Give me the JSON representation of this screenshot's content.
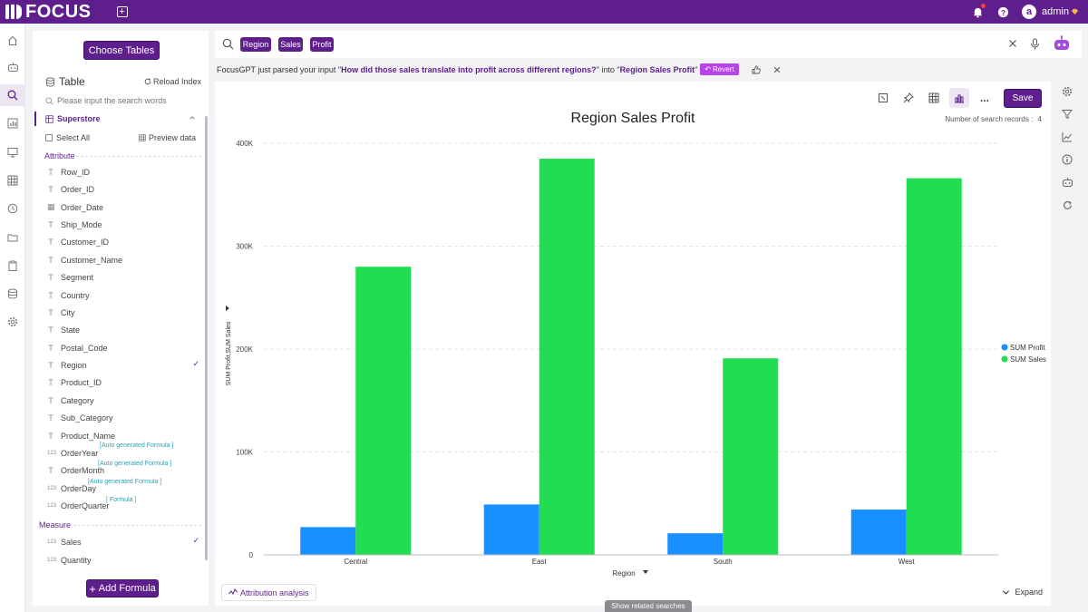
{
  "app": {
    "logo_text": "FOCUS",
    "user": {
      "avatar_letter": "a",
      "name": "admin"
    }
  },
  "panel": {
    "choose_tables_label": "Choose Tables",
    "table_heading": "Table",
    "reload_label": "Reload Index",
    "search_placeholder": "Please input the search words",
    "table_name": "Superstore",
    "select_all_label": "Select All",
    "preview_label": "Preview data",
    "attribute_label": "Attribute",
    "measure_label": "Measure",
    "attributes": [
      {
        "name": "Row_ID",
        "type": "T"
      },
      {
        "name": "Order_ID",
        "type": "T"
      },
      {
        "name": "Order_Date",
        "type": "date"
      },
      {
        "name": "Ship_Mode",
        "type": "T"
      },
      {
        "name": "Customer_ID",
        "type": "T"
      },
      {
        "name": "Customer_Name",
        "type": "T"
      },
      {
        "name": "Segment",
        "type": "T"
      },
      {
        "name": "Country",
        "type": "T"
      },
      {
        "name": "City",
        "type": "T"
      },
      {
        "name": "State",
        "type": "T"
      },
      {
        "name": "Postal_Code",
        "type": "T"
      },
      {
        "name": "Region",
        "type": "T",
        "checked": true
      },
      {
        "name": "Product_ID",
        "type": "T"
      },
      {
        "name": "Category",
        "type": "T"
      },
      {
        "name": "Sub_Category",
        "type": "T"
      },
      {
        "name": "Product_Name",
        "type": "T"
      },
      {
        "name": "OrderYear",
        "type": "123",
        "tag": "[Auto generated Formula ]"
      },
      {
        "name": "OrderMonth",
        "type": "T",
        "tag": "[Auto generated Formula ]"
      },
      {
        "name": "OrderDay",
        "type": "123",
        "tag": "[Auto generated Formula ]"
      },
      {
        "name": "OrderQuarter",
        "type": "123",
        "tag": "[ Formula ]"
      }
    ],
    "measures": [
      {
        "name": "Sales",
        "type": "123",
        "checked": true
      },
      {
        "name": "Quantity",
        "type": "123"
      }
    ],
    "add_formula_label": "Add Formula",
    "type_glyphs": {
      "T": "T",
      "date": "▦",
      "123": "123"
    },
    "check_glyph": "✓"
  },
  "search": {
    "tokens": [
      "Region",
      "Sales",
      "Profit"
    ]
  },
  "gpt": {
    "prefix": "FocusGPT just parsed your input \"",
    "query": "How did those sales translate into profit across different regions?",
    "middle": "\" into \"",
    "result_name": "Region Sales Profit",
    "suffix": "\"",
    "revert_label": "Revert"
  },
  "card": {
    "save_label": "Save",
    "more_label": "...",
    "records_label": "Number of search records :",
    "records_count": "4",
    "attribution_label": "Attribution analysis",
    "expand_label": "Expand",
    "related_label": "Show related searches"
  },
  "colors": {
    "brand": "#5e1f8c",
    "profit": "#1890ff",
    "sales": "#21dd52"
  },
  "chart_data": {
    "type": "bar",
    "title": "Region Sales Profit",
    "xlabel": "Region",
    "ylabel": "SUM Profit,SUM Sales",
    "categories": [
      "Central",
      "East",
      "South",
      "West"
    ],
    "series": [
      {
        "name": "SUM Profit",
        "values": [
          27000,
          49000,
          21000,
          44000
        ]
      },
      {
        "name": "SUM Sales",
        "values": [
          280000,
          385000,
          191000,
          366000
        ]
      }
    ],
    "ylim": [
      0,
      400000
    ],
    "yticks": [
      0,
      100000,
      200000,
      300000,
      400000
    ],
    "ytick_labels": [
      "0",
      "100K",
      "200K",
      "300K",
      "400K"
    ],
    "grid": true,
    "legend_position": "right"
  }
}
